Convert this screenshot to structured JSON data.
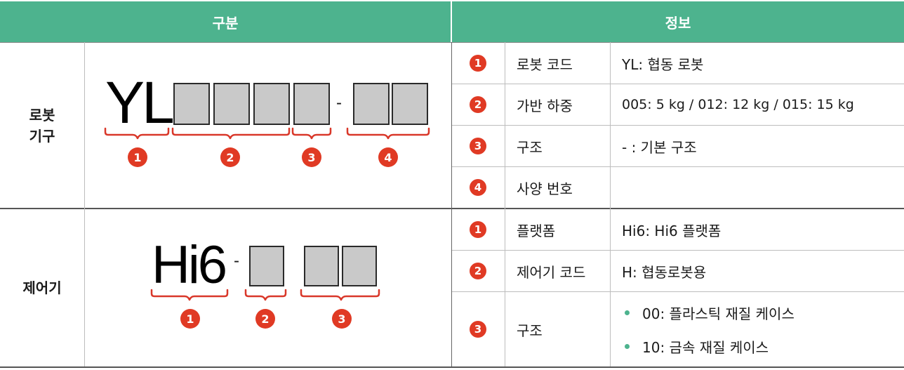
{
  "header": {
    "left": "구분",
    "right": "정보"
  },
  "sections": [
    {
      "category": [
        "로봇",
        "기구"
      ],
      "code_prefix": "YL",
      "code_separator": "-",
      "diagram_badges": [
        "1",
        "2",
        "3",
        "4"
      ],
      "rows": [
        {
          "num": "1",
          "label": "로봇 코드",
          "value": "YL: 협동 로봇"
        },
        {
          "num": "2",
          "label": "가반 하중",
          "value": "005: 5 kg / 012: 12 kg / 015: 15 kg"
        },
        {
          "num": "3",
          "label": "구조",
          "value": "- : 기본 구조"
        },
        {
          "num": "4",
          "label": "사양 번호",
          "value": ""
        }
      ]
    },
    {
      "category": [
        "제어기"
      ],
      "code_prefix": "Hi6",
      "code_separator": "-",
      "diagram_badges": [
        "1",
        "2",
        "3"
      ],
      "rows": [
        {
          "num": "1",
          "label": "플랫폼",
          "value": "Hi6: Hi6 플랫폼"
        },
        {
          "num": "2",
          "label": "제어기 코드",
          "value": "H: 협동로봇용"
        },
        {
          "num": "3",
          "label": "구조",
          "bullets": [
            "00: 플라스틱 재질 케이스",
            "10: 금속 재질 케이스"
          ]
        }
      ]
    }
  ],
  "colors": {
    "header_bg": "#4db38e",
    "badge": "#e03a24",
    "brace": "#d9382a",
    "box_fill": "#c9c9c9"
  }
}
